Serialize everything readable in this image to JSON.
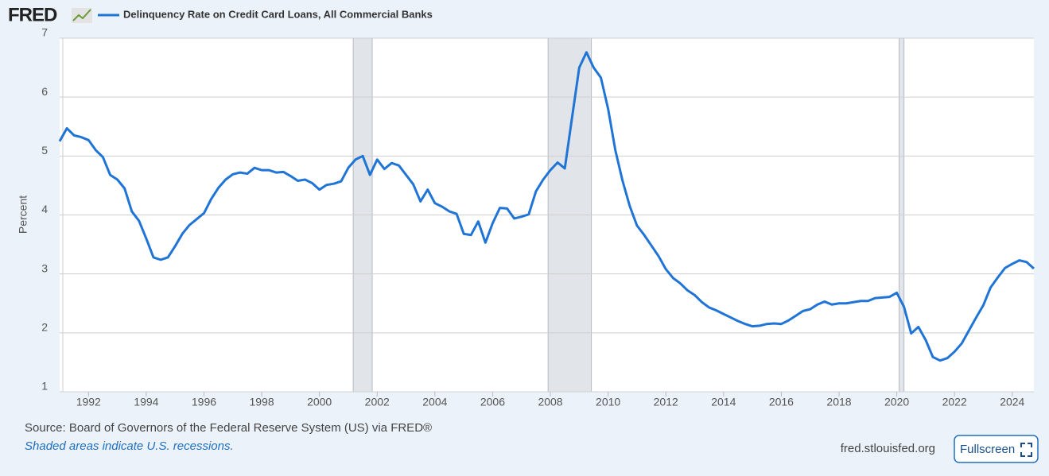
{
  "chart_data": {
    "type": "line",
    "logo": "FRED",
    "ylabel": "Percent",
    "series": [
      {
        "name": "Delinquency Rate on Credit Card Loans, All Commercial Banks",
        "color": "#1f74d6",
        "values": [
          5.25,
          5.47,
          5.35,
          5.32,
          5.27,
          5.1,
          4.98,
          4.68,
          4.6,
          4.45,
          4.06,
          3.9,
          3.6,
          3.28,
          3.24,
          3.28,
          3.47,
          3.68,
          3.83,
          3.93,
          4.03,
          4.27,
          4.46,
          4.6,
          4.69,
          4.72,
          4.7,
          4.8,
          4.76,
          4.76,
          4.72,
          4.73,
          4.66,
          4.58,
          4.6,
          4.54,
          4.43,
          4.51,
          4.53,
          4.57,
          4.8,
          4.94,
          5.0,
          4.68,
          4.94,
          4.78,
          4.88,
          4.84,
          4.68,
          4.52,
          4.23,
          4.43,
          4.2,
          4.14,
          4.06,
          4.02,
          3.68,
          3.66,
          3.89,
          3.53,
          3.86,
          4.12,
          4.11,
          3.94,
          3.97,
          4.01,
          4.4,
          4.6,
          4.76,
          4.89,
          4.79,
          5.65,
          6.5,
          6.76,
          6.5,
          6.33,
          5.8,
          5.1,
          4.58,
          4.15,
          3.82,
          3.66,
          3.48,
          3.3,
          3.08,
          2.93,
          2.84,
          2.72,
          2.64,
          2.52,
          2.43,
          2.38,
          2.32,
          2.26,
          2.2,
          2.15,
          2.11,
          2.12,
          2.15,
          2.16,
          2.15,
          2.21,
          2.29,
          2.37,
          2.4,
          2.48,
          2.53,
          2.48,
          2.5,
          2.5,
          2.52,
          2.54,
          2.54,
          2.59,
          2.6,
          2.61,
          2.68,
          2.44,
          1.99,
          2.1,
          1.88,
          1.59,
          1.53,
          1.57,
          1.68,
          1.82,
          2.04,
          2.26,
          2.47,
          2.77,
          2.94,
          3.1,
          3.17,
          3.23,
          3.2,
          3.09
        ]
      }
    ],
    "x": [
      1991,
      1991.25,
      1991.5,
      1991.75,
      1992,
      1992.25,
      1992.5,
      1992.75,
      1993,
      1993.25,
      1993.5,
      1993.75,
      1994,
      1994.25,
      1994.5,
      1994.75,
      1995,
      1995.25,
      1995.5,
      1995.75,
      1996,
      1996.25,
      1996.5,
      1996.75,
      1997,
      1997.25,
      1997.5,
      1997.75,
      1998,
      1998.25,
      1998.5,
      1998.75,
      1999,
      1999.25,
      1999.5,
      1999.75,
      2000,
      2000.25,
      2000.5,
      2000.75,
      2001,
      2001.25,
      2001.5,
      2001.75,
      2002,
      2002.25,
      2002.5,
      2002.75,
      2003,
      2003.25,
      2003.5,
      2003.75,
      2004,
      2004.25,
      2004.5,
      2004.75,
      2005,
      2005.25,
      2005.5,
      2005.75,
      2006,
      2006.25,
      2006.5,
      2006.75,
      2007,
      2007.25,
      2007.5,
      2007.75,
      2008,
      2008.25,
      2008.5,
      2008.75,
      2009,
      2009.25,
      2009.5,
      2009.75,
      2010,
      2010.25,
      2010.5,
      2010.75,
      2011,
      2011.25,
      2011.5,
      2011.75,
      2012,
      2012.25,
      2012.5,
      2012.75,
      2013,
      2013.25,
      2013.5,
      2013.75,
      2014,
      2014.25,
      2014.5,
      2014.75,
      2015,
      2015.25,
      2015.5,
      2015.75,
      2016,
      2016.25,
      2016.5,
      2016.75,
      2017,
      2017.25,
      2017.5,
      2017.75,
      2018,
      2018.25,
      2018.5,
      2018.75,
      2019,
      2019.25,
      2019.5,
      2019.75,
      2020,
      2020.25,
      2020.5,
      2020.75,
      2021,
      2021.25,
      2021.5,
      2021.75,
      2022,
      2022.25,
      2022.5,
      2022.75,
      2023,
      2023.25,
      2023.5,
      2023.75,
      2024,
      2024.25,
      2024.5,
      2024.75
    ],
    "recessions": [
      [
        2001.17,
        2001.83
      ],
      [
        2007.92,
        2009.42
      ],
      [
        2020.08,
        2020.25
      ]
    ],
    "xlim": [
      1991,
      2024.75
    ],
    "xticks": [
      1992,
      1994,
      1996,
      1998,
      2000,
      2002,
      2004,
      2006,
      2008,
      2010,
      2012,
      2014,
      2016,
      2018,
      2020,
      2022,
      2024
    ],
    "ylim": [
      1,
      7
    ],
    "yticks": [
      1,
      2,
      3,
      4,
      5,
      6,
      7
    ],
    "grid": true
  },
  "footer": {
    "source": "Source: Board of Governors of the Federal Reserve System (US) via FRED®",
    "note": "Shaded areas indicate U.S. recessions.",
    "site": "fred.stlouisfed.org",
    "button": "Fullscreen"
  }
}
